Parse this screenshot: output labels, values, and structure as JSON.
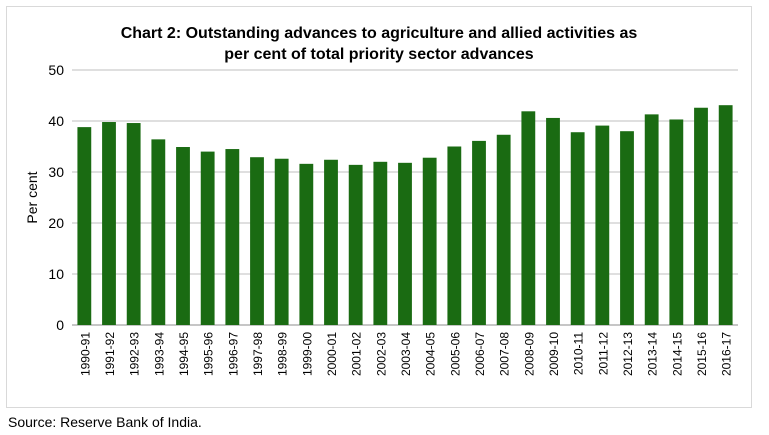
{
  "chart_data": {
    "type": "bar",
    "title": "Chart 2: Outstanding advances to agriculture and allied activities as\nper cent of total priority sector advances",
    "xlabel": "",
    "ylabel": "Per cent",
    "ylim": [
      0,
      50
    ],
    "yticks": [
      0,
      10,
      20,
      30,
      40,
      50
    ],
    "grid": true,
    "legend": "none",
    "bar_color": "#1a6b12",
    "categories": [
      "1990-91",
      "1991-92",
      "1992-93",
      "1993-94",
      "1994-95",
      "1995-96",
      "1996-97",
      "1997-98",
      "1998-99",
      "1999-00",
      "2000-01",
      "2001-02",
      "2002-03",
      "2003-04",
      "2004-05",
      "2005-06",
      "2006-07",
      "2007-08",
      "2008-09",
      "2009-10",
      "2010-11",
      "2011-12",
      "2012-13",
      "2013-14",
      "2014-15",
      "2015-16",
      "2016-17"
    ],
    "values": [
      38.8,
      39.8,
      39.6,
      36.4,
      34.9,
      34.0,
      34.5,
      32.9,
      32.6,
      31.6,
      32.4,
      31.4,
      32.0,
      31.8,
      32.8,
      35.0,
      36.1,
      37.3,
      41.9,
      40.6,
      37.8,
      39.1,
      38.0,
      41.3,
      40.3,
      42.6,
      43.1
    ]
  },
  "source": "Source: Reserve Bank of India."
}
